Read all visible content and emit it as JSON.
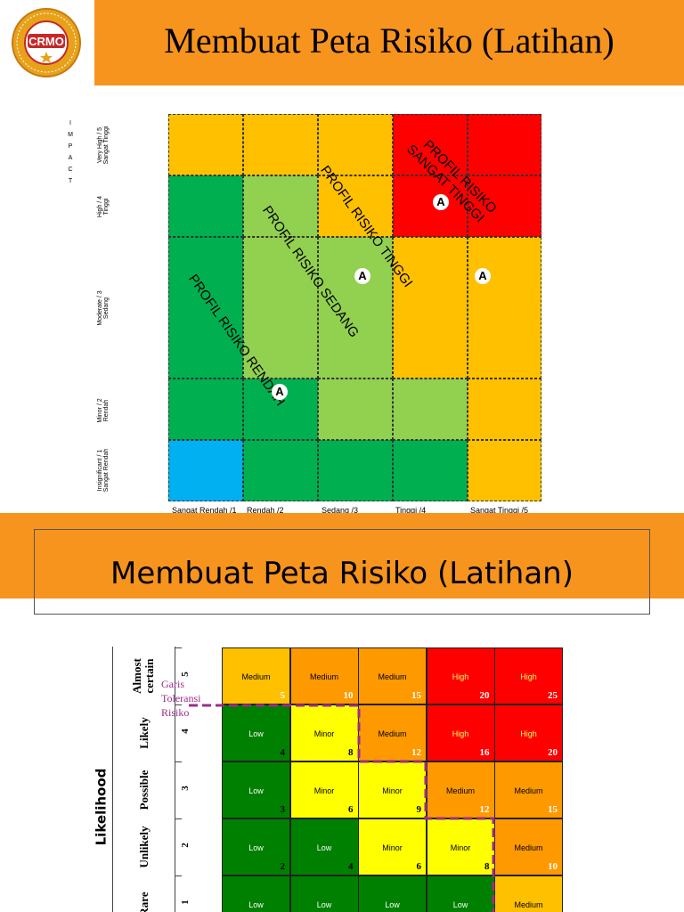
{
  "slide1": {
    "title": "Membuat Peta Risiko (Latihan)",
    "logo_text": "CRMO",
    "impact_label": "IMPACT",
    "y_labels": [
      {
        "en": "Very High / 5",
        "id": "Sangat Tinggi"
      },
      {
        "en": "High / 4",
        "id": "Tinggi"
      },
      {
        "en": "Moderate / 3",
        "id": "Sedang"
      },
      {
        "en": "Minor / 2",
        "id": "Rendah"
      },
      {
        "en": "Insignificant / 1",
        "id": "Sangat Rendah"
      }
    ],
    "x_labels": [
      "Sangat Rendah /1",
      "Rendah /2",
      "Sedang /3",
      "Tinggi /4",
      "Sangat Tinggi /5"
    ],
    "zone_labels": {
      "very_high": "PROFIL RISIKO SANGAT TINGGI",
      "very_high_line1": "PROFIL RISIKO",
      "very_high_line2": "SANGAT TINGGI",
      "high": "PROFIL RISIKO TINGGI",
      "medium": "PROFIL RISIKO  SEDANG",
      "low": "PROFIL RISIKO RENDAH"
    },
    "marker": "A",
    "colors": {
      "dark_green": "#00b050",
      "light_green": "#92d050",
      "amber": "#ffc000",
      "red": "#ff0000",
      "blue": "#00b0f0"
    }
  },
  "slide2": {
    "title": "Membuat Peta Risiko (Latihan)",
    "axis_label": "Likelihood",
    "tolerance_label_line1": "Garis",
    "tolerance_label_line2": "Toleransi",
    "tolerance_label_line3": "Risiko",
    "rows": [
      {
        "label": "Almost certain",
        "label_line1": "Almost",
        "label_line2": "certain",
        "num": "5",
        "cells": [
          {
            "level": "Medium",
            "score": "5",
            "color": "#ffc000"
          },
          {
            "level": "Medium",
            "score": "10",
            "color": "#ff9900"
          },
          {
            "level": "Medium",
            "score": "15",
            "color": "#ff9900"
          },
          {
            "level": "High",
            "score": "20",
            "color": "#ff0000"
          },
          {
            "level": "High",
            "score": "25",
            "color": "#ff0000"
          }
        ]
      },
      {
        "label": "Likely",
        "num": "4",
        "cells": [
          {
            "level": "Low",
            "score": "4",
            "color": "#008000"
          },
          {
            "level": "Minor",
            "score": "8",
            "color": "#ffff00"
          },
          {
            "level": "Medium",
            "score": "12",
            "color": "#ff9900"
          },
          {
            "level": "High",
            "score": "16",
            "color": "#ff0000"
          },
          {
            "level": "High",
            "score": "20",
            "color": "#ff0000"
          }
        ]
      },
      {
        "label": "Possible",
        "num": "3",
        "cells": [
          {
            "level": "Low",
            "score": "3",
            "color": "#008000"
          },
          {
            "level": "Minor",
            "score": "6",
            "color": "#ffff00"
          },
          {
            "level": "Minor",
            "score": "9",
            "color": "#ffff00"
          },
          {
            "level": "Medium",
            "score": "12",
            "color": "#ff9900"
          },
          {
            "level": "Medium",
            "score": "15",
            "color": "#ff9900"
          }
        ]
      },
      {
        "label": "Unlikely",
        "num": "2",
        "cells": [
          {
            "level": "Low",
            "score": "2",
            "color": "#008000"
          },
          {
            "level": "Low",
            "score": "4",
            "color": "#008000"
          },
          {
            "level": "Minor",
            "score": "6",
            "color": "#ffff00"
          },
          {
            "level": "Minor",
            "score": "8",
            "color": "#ffff00"
          },
          {
            "level": "Medium",
            "score": "10",
            "color": "#ff9900"
          }
        ]
      },
      {
        "label": "Rare",
        "num": "1",
        "cells": [
          {
            "level": "Low",
            "score": "",
            "color": "#008000"
          },
          {
            "level": "Low",
            "score": "",
            "color": "#008000"
          },
          {
            "level": "Low",
            "score": "",
            "color": "#008000"
          },
          {
            "level": "Low",
            "score": "",
            "color": "#008000"
          },
          {
            "level": "Medium",
            "score": "",
            "color": "#ffc000"
          }
        ]
      }
    ]
  }
}
